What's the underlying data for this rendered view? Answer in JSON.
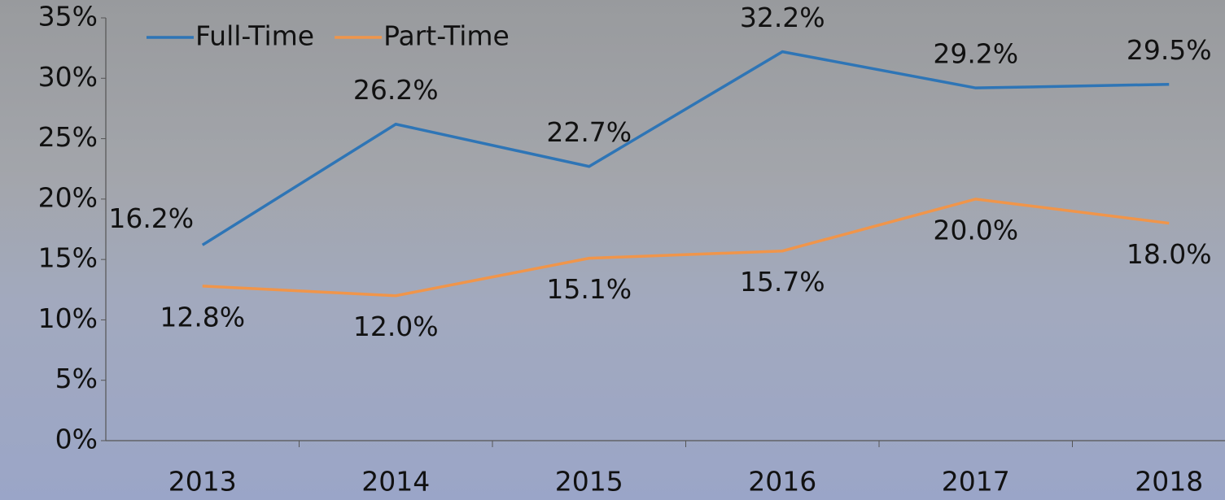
{
  "chart_data": {
    "type": "line",
    "categories": [
      "2013",
      "2014",
      "2015",
      "2016",
      "2017",
      "2018"
    ],
    "series": [
      {
        "name": "Full-Time",
        "color": "#2e75b6",
        "values": [
          16.2,
          26.2,
          22.7,
          32.2,
          29.2,
          29.5
        ],
        "value_labels": [
          "16.2%",
          "26.2%",
          "22.7%",
          "32.2%",
          "29.2%",
          "29.5%"
        ]
      },
      {
        "name": "Part-Time",
        "color": "#f0954a",
        "values": [
          12.8,
          12.0,
          15.1,
          15.7,
          20.0,
          18.0
        ],
        "value_labels": [
          "12.8%",
          "12.0%",
          "15.1%",
          "15.7%",
          "20.0%",
          "18.0%"
        ]
      }
    ],
    "ylim": [
      0,
      35
    ],
    "yticks": [
      {
        "value": 0,
        "label": "0%"
      },
      {
        "value": 5,
        "label": "5%"
      },
      {
        "value": 10,
        "label": "10%"
      },
      {
        "value": 15,
        "label": "15%"
      },
      {
        "value": 20,
        "label": "20%"
      },
      {
        "value": 25,
        "label": "25%"
      },
      {
        "value": 30,
        "label": "30%"
      },
      {
        "value": 35,
        "label": "35%"
      }
    ],
    "legend": "top-left"
  }
}
